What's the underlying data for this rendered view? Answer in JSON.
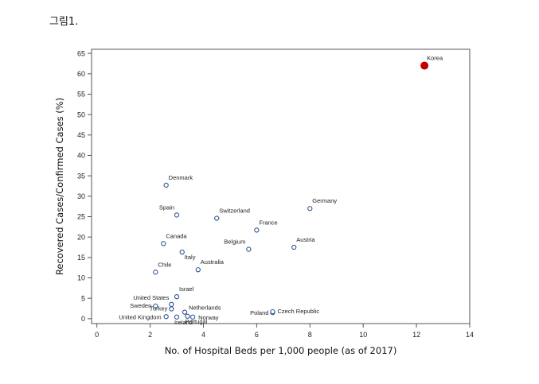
{
  "figure_label": "그림1.",
  "chart_data": {
    "type": "scatter",
    "xlabel": "No. of Hospital Beds per 1,000 people (as of 2017)",
    "ylabel": "Recovered Cases/Confirmed Cases (%)",
    "xlim": [
      -0.2,
      14
    ],
    "ylim": [
      -1.2,
      66
    ],
    "xticks": [
      0,
      2,
      4,
      6,
      8,
      10,
      12,
      14
    ],
    "yticks": [
      0,
      5,
      10,
      15,
      20,
      25,
      30,
      35,
      40,
      45,
      50,
      55,
      60,
      65
    ],
    "grid": false,
    "highlight_color": "#c00000",
    "marker_color": "#2f5592",
    "points": [
      {
        "label": "Korea",
        "x": 12.3,
        "y": 62.0,
        "highlight": true
      },
      {
        "label": "Denmark",
        "x": 2.6,
        "y": 32.7
      },
      {
        "label": "Spain",
        "x": 3.0,
        "y": 25.4
      },
      {
        "label": "Switzerland",
        "x": 4.5,
        "y": 24.6
      },
      {
        "label": "Germany",
        "x": 8.0,
        "y": 27.0
      },
      {
        "label": "France",
        "x": 6.0,
        "y": 21.7
      },
      {
        "label": "Austria",
        "x": 7.4,
        "y": 17.5
      },
      {
        "label": "Canada",
        "x": 2.5,
        "y": 18.4
      },
      {
        "label": "Belgium",
        "x": 5.7,
        "y": 17.0
      },
      {
        "label": "Italy",
        "x": 3.2,
        "y": 16.3
      },
      {
        "label": "Australia",
        "x": 3.8,
        "y": 12.0
      },
      {
        "label": "Chile",
        "x": 2.2,
        "y": 11.4
      },
      {
        "label": "Israel",
        "x": 3.0,
        "y": 5.4
      },
      {
        "label": "United States",
        "x": 2.8,
        "y": 3.5
      },
      {
        "label": "Sweden",
        "x": 2.2,
        "y": 3.1
      },
      {
        "label": "Turkey",
        "x": 2.8,
        "y": 2.4
      },
      {
        "label": "Netherlands",
        "x": 3.3,
        "y": 1.6
      },
      {
        "label": "United Kingdom",
        "x": 2.6,
        "y": 0.5
      },
      {
        "label": "Ireland",
        "x": 3.0,
        "y": 0.4
      },
      {
        "label": "Portugal",
        "x": 3.4,
        "y": 0.6
      },
      {
        "label": "Norway",
        "x": 3.6,
        "y": 0.4
      },
      {
        "label": "Poland",
        "x": 6.6,
        "y": 1.5
      },
      {
        "label": "Czech Republic",
        "x": 6.6,
        "y": 1.7
      }
    ]
  }
}
